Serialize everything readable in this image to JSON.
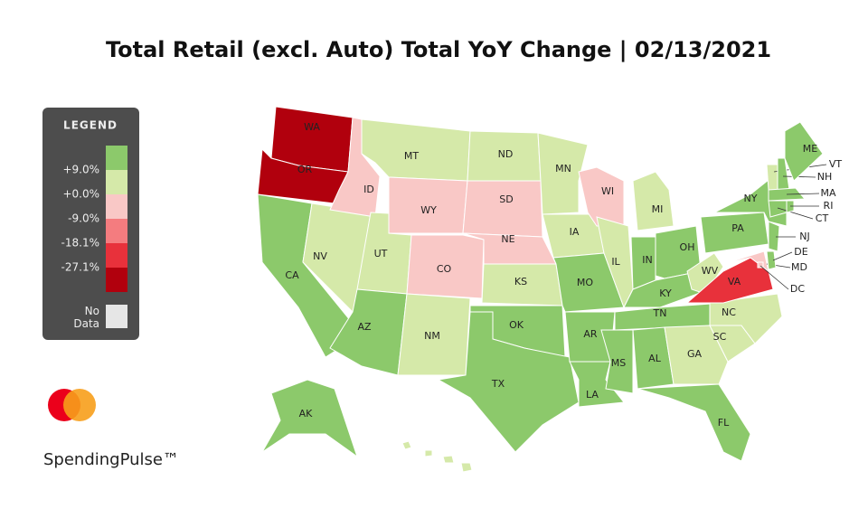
{
  "header": {
    "title": "Total Retail (excl. Auto) Total YoY Change | 02/13/2021"
  },
  "legend": {
    "title": "LEGEND",
    "colors": [
      "#8cc96b",
      "#d5e9a9",
      "#f9c8c6",
      "#f47c7f",
      "#e8313b",
      "#b1000d"
    ],
    "ticks": [
      {
        "value": 9.0,
        "label": "+9.0%"
      },
      {
        "value": 0.0,
        "label": "+0.0%"
      },
      {
        "value": -9.0,
        "label": "-9.0%"
      },
      {
        "value": -18.1,
        "label": "-18.1%"
      },
      {
        "value": -27.1,
        "label": "-27.1%"
      }
    ],
    "no_data_label": "No Data",
    "no_data_color": "#e6e6e6"
  },
  "brand": {
    "name": "SpendingPulse™"
  },
  "states": [
    {
      "label": "WA",
      "color": "#b1000d"
    },
    {
      "label": "OR",
      "color": "#b1000d"
    },
    {
      "label": "CA",
      "color": "#8cc96b"
    },
    {
      "label": "NV",
      "color": "#d5e9a9"
    },
    {
      "label": "ID",
      "color": "#f9c8c6"
    },
    {
      "label": "MT",
      "color": "#d5e9a9"
    },
    {
      "label": "WY",
      "color": "#f9c8c6"
    },
    {
      "label": "UT",
      "color": "#d5e9a9"
    },
    {
      "label": "CO",
      "color": "#f9c8c6"
    },
    {
      "label": "AZ",
      "color": "#8cc96b"
    },
    {
      "label": "NM",
      "color": "#d5e9a9"
    },
    {
      "label": "ND",
      "color": "#d5e9a9"
    },
    {
      "label": "SD",
      "color": "#f9c8c6"
    },
    {
      "label": "NE",
      "color": "#f9c8c6"
    },
    {
      "label": "KS",
      "color": "#d5e9a9"
    },
    {
      "label": "OK",
      "color": "#8cc96b"
    },
    {
      "label": "TX",
      "color": "#8cc96b"
    },
    {
      "label": "MN",
      "color": "#d5e9a9"
    },
    {
      "label": "IA",
      "color": "#d5e9a9"
    },
    {
      "label": "MO",
      "color": "#8cc96b"
    },
    {
      "label": "AR",
      "color": "#8cc96b"
    },
    {
      "label": "LA",
      "color": "#8cc96b"
    },
    {
      "label": "WI",
      "color": "#f9c8c6"
    },
    {
      "label": "IL",
      "color": "#d5e9a9"
    },
    {
      "label": "MI",
      "color": "#d5e9a9"
    },
    {
      "label": "IN",
      "color": "#8cc96b"
    },
    {
      "label": "OH",
      "color": "#8cc96b"
    },
    {
      "label": "KY",
      "color": "#8cc96b"
    },
    {
      "label": "TN",
      "color": "#8cc96b"
    },
    {
      "label": "MS",
      "color": "#8cc96b"
    },
    {
      "label": "AL",
      "color": "#8cc96b"
    },
    {
      "label": "GA",
      "color": "#d5e9a9"
    },
    {
      "label": "FL",
      "color": "#8cc96b"
    },
    {
      "label": "SC",
      "color": "#d5e9a9"
    },
    {
      "label": "NC",
      "color": "#d5e9a9"
    },
    {
      "label": "WV",
      "color": "#d5e9a9"
    },
    {
      "label": "VA",
      "color": "#e8313b"
    },
    {
      "label": "PA",
      "color": "#8cc96b"
    },
    {
      "label": "NY",
      "color": "#8cc96b"
    },
    {
      "label": "MD",
      "color": "#f9c8c6"
    },
    {
      "label": "DE",
      "color": "#8cc96b"
    },
    {
      "label": "NJ",
      "color": "#8cc96b"
    },
    {
      "label": "VT",
      "color": "#d5e9a9"
    },
    {
      "label": "NH",
      "color": "#8cc96b"
    },
    {
      "label": "ME",
      "color": "#8cc96b"
    },
    {
      "label": "MA",
      "color": "#8cc96b"
    },
    {
      "label": "CT",
      "color": "#8cc96b"
    },
    {
      "label": "RI",
      "color": "#8cc96b"
    },
    {
      "label": "DC",
      "color": "#f9c8c6"
    },
    {
      "label": "AK",
      "color": "#8cc96b"
    },
    {
      "label": null,
      "color": "#d5e9a9"
    }
  ]
}
